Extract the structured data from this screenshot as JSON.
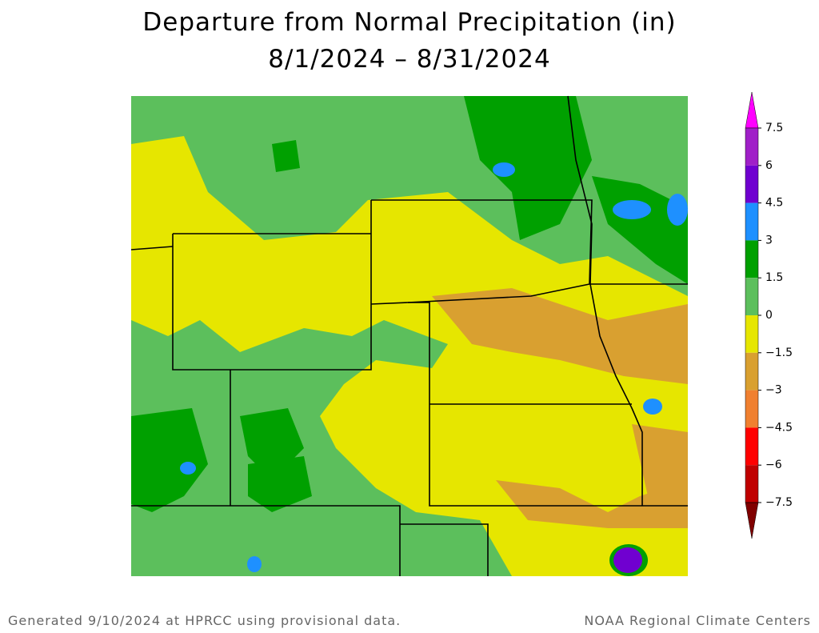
{
  "header": {
    "title": "Departure from Normal Precipitation (in)",
    "subtitle": "8/1/2024 – 8/31/2024"
  },
  "legend": {
    "ticks": [
      7.5,
      6,
      4.5,
      3,
      1.5,
      0,
      {
        "value": -1.5,
        "label": "−1.5"
      },
      {
        "value": -3,
        "label": "−3"
      },
      {
        "value": -4.5,
        "label": "−4.5"
      },
      {
        "value": -6,
        "label": "−6"
      },
      {
        "value": -7.5,
        "label": "−7.5"
      }
    ],
    "colors": [
      "#ff00ff",
      "#a020c8",
      "#7000d0",
      "#1e90ff",
      "#00a000",
      "#5cbf5c",
      "#e6e600",
      "#d9a030",
      "#f08030",
      "#ff0000",
      "#c00000",
      "#800000"
    ]
  },
  "footer": {
    "left": "Generated 9/10/2024 at HPRCC using provisional data.",
    "right": "NOAA Regional Climate Centers"
  }
}
